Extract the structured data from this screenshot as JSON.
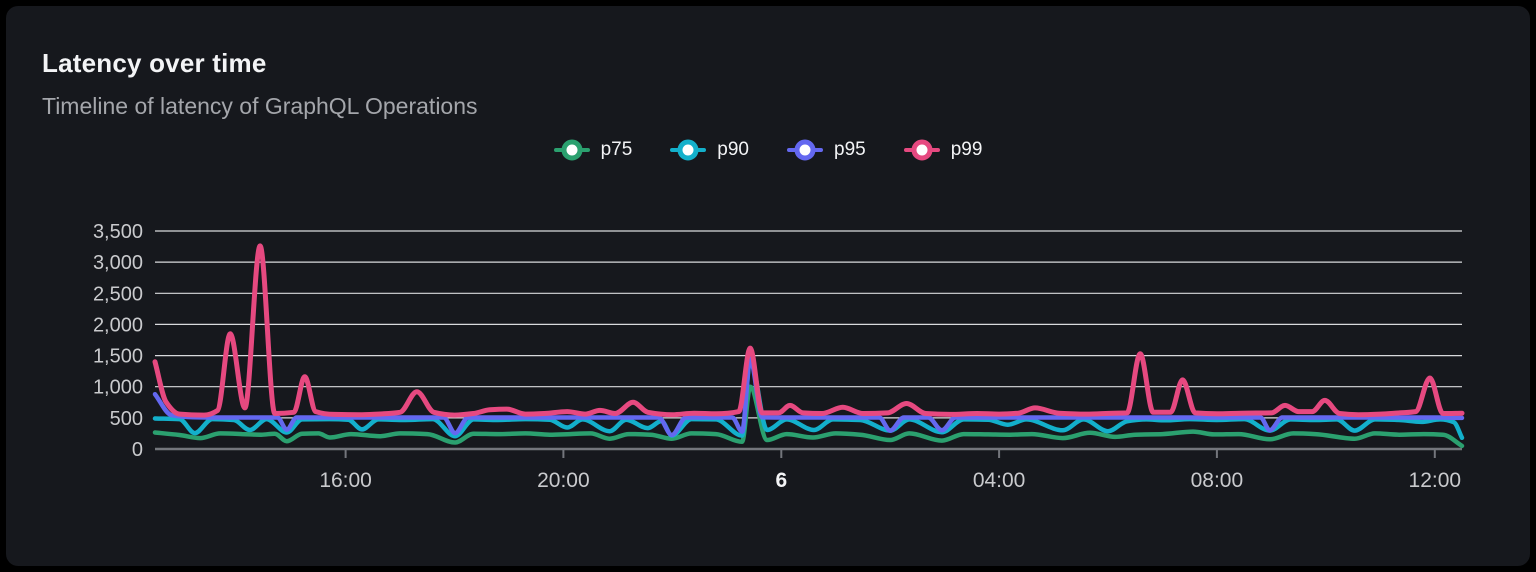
{
  "card": {
    "title": "Latency over time",
    "subtitle": "Timeline of latency of GraphQL Operations"
  },
  "colors": {
    "page_background": "#000000",
    "card_background": "#16181d",
    "title": "#f3f4f6",
    "subtitle": "#a4a6ab",
    "grid_line": "#d9dadd",
    "axis_line": "#73767c",
    "tick_label": "#c9cacd",
    "tick_label_bold": "#f3f4f6",
    "legend_label": "#f3f4f6"
  },
  "chart_data": {
    "type": "line",
    "title": "Latency over time",
    "subtitle": "Timeline of latency of GraphQL Operations",
    "xlabel": "",
    "ylabel": "",
    "y_unit": "ms",
    "x_unit": "hours from start of window (~12:30) spanning 24h across midnight of day 6",
    "xlim": [
      0,
      24
    ],
    "ylim": [
      0,
      3500
    ],
    "grid": "horizontal",
    "legend_position": "top-center",
    "yticks": [
      {
        "value": 0,
        "label": "0"
      },
      {
        "value": 500,
        "label": "500"
      },
      {
        "value": 1000,
        "label": "1,000"
      },
      {
        "value": 1500,
        "label": "1,500"
      },
      {
        "value": 2000,
        "label": "2,000"
      },
      {
        "value": 2500,
        "label": "2,500"
      },
      {
        "value": 3000,
        "label": "3,000"
      },
      {
        "value": 3500,
        "label": "3,500"
      }
    ],
    "xticks": [
      {
        "t": 3.5,
        "label": "16:00",
        "bold": false
      },
      {
        "t": 7.5,
        "label": "20:00",
        "bold": false
      },
      {
        "t": 11.5,
        "label": "6",
        "bold": true
      },
      {
        "t": 15.5,
        "label": "04:00",
        "bold": false
      },
      {
        "t": 19.5,
        "label": "08:00",
        "bold": false
      },
      {
        "t": 23.5,
        "label": "12:00",
        "bold": false
      }
    ],
    "series": [
      {
        "name": "p75",
        "color": "#2ba06f",
        "stroke_width": 4.5,
        "points": [
          [
            0,
            265
          ],
          [
            0.45,
            225
          ],
          [
            0.83,
            175
          ],
          [
            1.2,
            250
          ],
          [
            1.6,
            240
          ],
          [
            1.95,
            230
          ],
          [
            2.2,
            245
          ],
          [
            2.42,
            125
          ],
          [
            2.7,
            245
          ],
          [
            3.0,
            250
          ],
          [
            3.21,
            185
          ],
          [
            3.6,
            240
          ],
          [
            4.13,
            205
          ],
          [
            4.5,
            250
          ],
          [
            5.0,
            240
          ],
          [
            5.51,
            105
          ],
          [
            5.85,
            245
          ],
          [
            6.3,
            240
          ],
          [
            6.8,
            250
          ],
          [
            7.25,
            230
          ],
          [
            7.62,
            240
          ],
          [
            8.0,
            250
          ],
          [
            8.35,
            165
          ],
          [
            8.7,
            240
          ],
          [
            9.1,
            230
          ],
          [
            9.49,
            165
          ],
          [
            9.85,
            250
          ],
          [
            10.3,
            240
          ],
          [
            10.78,
            115
          ],
          [
            10.93,
            1000
          ],
          [
            11.24,
            145
          ],
          [
            11.6,
            240
          ],
          [
            12.08,
            185
          ],
          [
            12.5,
            250
          ],
          [
            12.95,
            230
          ],
          [
            13.5,
            145
          ],
          [
            13.85,
            250
          ],
          [
            14.45,
            135
          ],
          [
            14.85,
            240
          ],
          [
            15.3,
            235
          ],
          [
            15.7,
            230
          ],
          [
            16.1,
            240
          ],
          [
            16.67,
            175
          ],
          [
            17.17,
            260
          ],
          [
            17.63,
            195
          ],
          [
            18.0,
            230
          ],
          [
            18.5,
            240
          ],
          [
            19.06,
            280
          ],
          [
            19.45,
            235
          ],
          [
            19.9,
            240
          ],
          [
            20.47,
            155
          ],
          [
            20.9,
            250
          ],
          [
            21.3,
            240
          ],
          [
            22.03,
            165
          ],
          [
            22.4,
            250
          ],
          [
            22.85,
            230
          ],
          [
            23.3,
            240
          ],
          [
            23.65,
            230
          ],
          [
            24,
            50
          ]
        ]
      },
      {
        "name": "p90",
        "color": "#13b0cb",
        "stroke_width": 4.5,
        "points": [
          [
            0,
            490
          ],
          [
            0.45,
            480
          ],
          [
            0.73,
            255
          ],
          [
            1.05,
            480
          ],
          [
            1.45,
            465
          ],
          [
            1.74,
            305
          ],
          [
            2.05,
            480
          ],
          [
            2.42,
            265
          ],
          [
            2.7,
            475
          ],
          [
            3.2,
            480
          ],
          [
            3.55,
            470
          ],
          [
            3.8,
            315
          ],
          [
            4.1,
            475
          ],
          [
            4.6,
            465
          ],
          [
            5.1,
            480
          ],
          [
            5.51,
            205
          ],
          [
            5.85,
            475
          ],
          [
            6.3,
            465
          ],
          [
            6.8,
            480
          ],
          [
            7.25,
            470
          ],
          [
            7.57,
            345
          ],
          [
            7.85,
            475
          ],
          [
            8.35,
            285
          ],
          [
            8.65,
            470
          ],
          [
            9.05,
            335
          ],
          [
            9.3,
            450
          ],
          [
            9.49,
            215
          ],
          [
            9.85,
            480
          ],
          [
            10.3,
            475
          ],
          [
            10.78,
            215
          ],
          [
            10.93,
            1430
          ],
          [
            11.24,
            305
          ],
          [
            11.6,
            475
          ],
          [
            12.1,
            305
          ],
          [
            12.45,
            475
          ],
          [
            12.95,
            465
          ],
          [
            13.5,
            295
          ],
          [
            13.85,
            475
          ],
          [
            14.45,
            270
          ],
          [
            14.85,
            475
          ],
          [
            15.3,
            470
          ],
          [
            15.66,
            390
          ],
          [
            16.0,
            475
          ],
          [
            16.67,
            300
          ],
          [
            17.05,
            475
          ],
          [
            17.5,
            285
          ],
          [
            17.85,
            445
          ],
          [
            18.2,
            475
          ],
          [
            18.55,
            460
          ],
          [
            19.0,
            480
          ],
          [
            19.5,
            465
          ],
          [
            20.0,
            480
          ],
          [
            20.47,
            295
          ],
          [
            20.85,
            475
          ],
          [
            21.3,
            465
          ],
          [
            21.7,
            475
          ],
          [
            22.03,
            295
          ],
          [
            22.4,
            475
          ],
          [
            22.85,
            465
          ],
          [
            23.25,
            435
          ],
          [
            23.6,
            475
          ],
          [
            23.85,
            430
          ],
          [
            24,
            180
          ]
        ]
      },
      {
        "name": "p95",
        "color": "#6468f0",
        "stroke_width": 4.5,
        "points": [
          [
            0,
            880
          ],
          [
            0.3,
            545
          ],
          [
            0.7,
            510
          ],
          [
            1.2,
            505
          ],
          [
            1.8,
            505
          ],
          [
            2.25,
            505
          ],
          [
            2.42,
            310
          ],
          [
            2.6,
            505
          ],
          [
            3.2,
            505
          ],
          [
            4.0,
            505
          ],
          [
            4.8,
            505
          ],
          [
            5.3,
            505
          ],
          [
            5.51,
            255
          ],
          [
            5.75,
            505
          ],
          [
            6.4,
            505
          ],
          [
            7.2,
            505
          ],
          [
            8.0,
            505
          ],
          [
            8.6,
            505
          ],
          [
            9.25,
            505
          ],
          [
            9.49,
            225
          ],
          [
            9.75,
            505
          ],
          [
            10.3,
            505
          ],
          [
            10.6,
            505
          ],
          [
            10.78,
            280
          ],
          [
            10.93,
            1450
          ],
          [
            11.15,
            510
          ],
          [
            11.7,
            505
          ],
          [
            12.3,
            505
          ],
          [
            12.9,
            505
          ],
          [
            13.3,
            505
          ],
          [
            13.5,
            295
          ],
          [
            13.75,
            505
          ],
          [
            14.2,
            505
          ],
          [
            14.45,
            300
          ],
          [
            14.7,
            505
          ],
          [
            15.3,
            505
          ],
          [
            16.1,
            505
          ],
          [
            16.9,
            505
          ],
          [
            17.7,
            505
          ],
          [
            18.4,
            505
          ],
          [
            19.2,
            505
          ],
          [
            19.9,
            505
          ],
          [
            20.3,
            505
          ],
          [
            20.47,
            300
          ],
          [
            20.7,
            505
          ],
          [
            21.4,
            505
          ],
          [
            22.2,
            505
          ],
          [
            23.0,
            505
          ],
          [
            23.6,
            505
          ],
          [
            24,
            500
          ]
        ]
      },
      {
        "name": "p99",
        "color": "#e64980",
        "stroke_width": 5,
        "points": [
          [
            0,
            1400
          ],
          [
            0.2,
            760
          ],
          [
            0.45,
            560
          ],
          [
            0.9,
            545
          ],
          [
            1.15,
            620
          ],
          [
            1.38,
            1850
          ],
          [
            1.65,
            660
          ],
          [
            1.93,
            3260
          ],
          [
            2.2,
            570
          ],
          [
            2.55,
            590
          ],
          [
            2.75,
            1160
          ],
          [
            2.95,
            600
          ],
          [
            3.3,
            555
          ],
          [
            3.8,
            550
          ],
          [
            4.2,
            565
          ],
          [
            4.5,
            590
          ],
          [
            4.81,
            920
          ],
          [
            5.12,
            590
          ],
          [
            5.5,
            545
          ],
          [
            5.85,
            570
          ],
          [
            6.15,
            630
          ],
          [
            6.46,
            640
          ],
          [
            6.8,
            560
          ],
          [
            7.15,
            570
          ],
          [
            7.57,
            600
          ],
          [
            7.9,
            560
          ],
          [
            8.17,
            620
          ],
          [
            8.45,
            570
          ],
          [
            8.78,
            750
          ],
          [
            9.05,
            590
          ],
          [
            9.5,
            550
          ],
          [
            9.9,
            575
          ],
          [
            10.3,
            565
          ],
          [
            10.72,
            600
          ],
          [
            10.93,
            1620
          ],
          [
            11.15,
            580
          ],
          [
            11.45,
            580
          ],
          [
            11.66,
            700
          ],
          [
            11.9,
            580
          ],
          [
            12.25,
            570
          ],
          [
            12.63,
            670
          ],
          [
            13.0,
            570
          ],
          [
            13.45,
            580
          ],
          [
            13.8,
            730
          ],
          [
            14.15,
            570
          ],
          [
            14.6,
            555
          ],
          [
            15.1,
            570
          ],
          [
            15.5,
            560
          ],
          [
            15.85,
            575
          ],
          [
            16.16,
            660
          ],
          [
            16.6,
            575
          ],
          [
            17.1,
            560
          ],
          [
            17.6,
            575
          ],
          [
            17.85,
            580
          ],
          [
            18.09,
            1530
          ],
          [
            18.33,
            590
          ],
          [
            18.65,
            590
          ],
          [
            18.87,
            1110
          ],
          [
            19.1,
            580
          ],
          [
            19.5,
            565
          ],
          [
            19.95,
            575
          ],
          [
            20.5,
            580
          ],
          [
            20.75,
            700
          ],
          [
            21.0,
            600
          ],
          [
            21.25,
            600
          ],
          [
            21.48,
            780
          ],
          [
            21.75,
            570
          ],
          [
            22.1,
            550
          ],
          [
            22.5,
            560
          ],
          [
            22.85,
            580
          ],
          [
            23.15,
            600
          ],
          [
            23.41,
            1140
          ],
          [
            23.65,
            570
          ],
          [
            24,
            575
          ]
        ]
      }
    ]
  }
}
